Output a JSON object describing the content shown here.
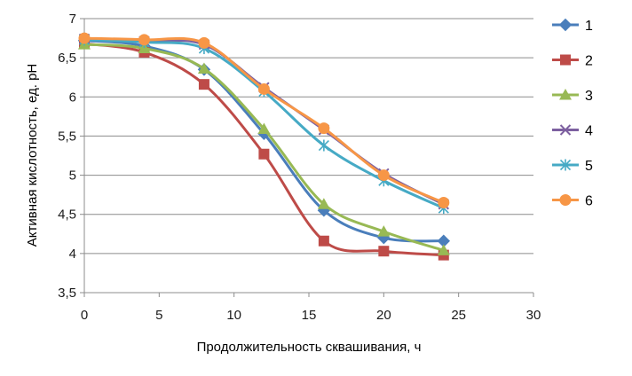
{
  "chart_data": {
    "type": "line",
    "xlabel": "Продолжительность сквашивания, ч",
    "ylabel": "Активная кислотность, ед. рН",
    "xlim": [
      0,
      30
    ],
    "ylim": [
      3.5,
      7
    ],
    "x_ticks": [
      0,
      5,
      10,
      15,
      20,
      25,
      30
    ],
    "y_ticks": [
      "3,5",
      "4",
      "4,5",
      "5",
      "5,5",
      "6",
      "6,5",
      "7"
    ],
    "y_tick_values": [
      3.5,
      4,
      4.5,
      5,
      5.5,
      6,
      6.5,
      7
    ],
    "grid": "horizontal",
    "legend_position": "right",
    "x": [
      0,
      4,
      8,
      12,
      16,
      20,
      24
    ],
    "series": [
      {
        "name": "1",
        "color": "#4a7ebb",
        "marker": "diamond",
        "values": [
          6.72,
          6.65,
          6.35,
          5.53,
          4.55,
          4.2,
          4.16
        ]
      },
      {
        "name": "2",
        "color": "#be4b48",
        "marker": "square",
        "values": [
          6.68,
          6.57,
          6.16,
          5.27,
          4.16,
          4.03,
          3.98
        ]
      },
      {
        "name": "3",
        "color": "#98b954",
        "marker": "triangle",
        "values": [
          6.67,
          6.62,
          6.36,
          5.59,
          4.63,
          4.28,
          4.04
        ]
      },
      {
        "name": "4",
        "color": "#7d60a0",
        "marker": "x",
        "values": [
          6.74,
          6.71,
          6.67,
          6.12,
          5.58,
          5.02,
          4.63
        ]
      },
      {
        "name": "5",
        "color": "#46aac5",
        "marker": "star",
        "values": [
          6.73,
          6.7,
          6.62,
          6.07,
          5.38,
          4.93,
          4.58
        ]
      },
      {
        "name": "6",
        "color": "#f79646",
        "marker": "circle",
        "values": [
          6.75,
          6.73,
          6.69,
          6.1,
          5.6,
          5.0,
          4.65
        ]
      }
    ]
  }
}
